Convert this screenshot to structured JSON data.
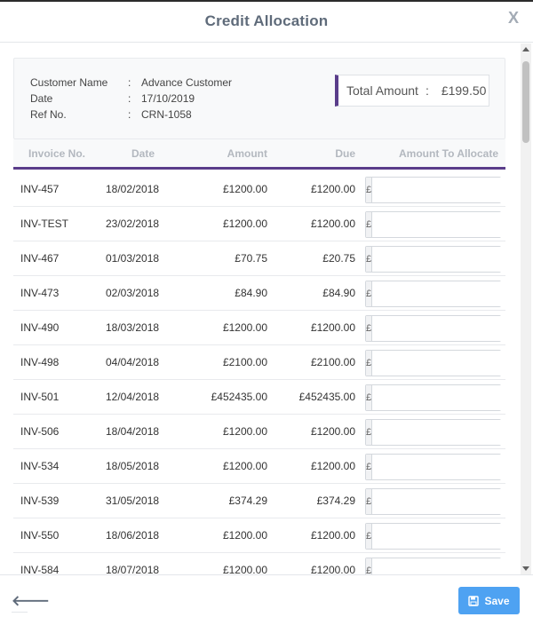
{
  "modal": {
    "title": "Credit Allocation",
    "close_glyph": "X"
  },
  "summary": {
    "customer_name_label": "Customer Name",
    "customer_name_value": "Advance Customer",
    "date_label": "Date",
    "date_value": "17/10/2019",
    "ref_label": "Ref No.",
    "ref_value": "CRN-1058",
    "colon": ":",
    "total_label": "Total Amount",
    "total_value": "£199.50"
  },
  "table": {
    "headers": [
      "Invoice No.",
      "Date",
      "Amount",
      "Due",
      "Amount To Allocate"
    ],
    "currency_prefix": "£",
    "rows": [
      [
        "INV-457",
        "18/02/2018",
        "£1200.00",
        "£1200.00"
      ],
      [
        "INV-TEST",
        "23/02/2018",
        "£1200.00",
        "£1200.00"
      ],
      [
        "INV-467",
        "01/03/2018",
        "£70.75",
        "£20.75"
      ],
      [
        "INV-473",
        "02/03/2018",
        "£84.90",
        "£84.90"
      ],
      [
        "INV-490",
        "18/03/2018",
        "£1200.00",
        "£1200.00"
      ],
      [
        "INV-498",
        "04/04/2018",
        "£2100.00",
        "£2100.00"
      ],
      [
        "INV-501",
        "12/04/2018",
        "£452435.00",
        "£452435.00"
      ],
      [
        "INV-506",
        "18/04/2018",
        "£1200.00",
        "£1200.00"
      ],
      [
        "INV-534",
        "18/05/2018",
        "£1200.00",
        "£1200.00"
      ],
      [
        "INV-539",
        "31/05/2018",
        "£374.29",
        "£374.29"
      ],
      [
        "INV-550",
        "18/06/2018",
        "£1200.00",
        "£1200.00"
      ],
      [
        "INV-584",
        "18/07/2018",
        "£1200.00",
        "£1200.00"
      ]
    ]
  },
  "footer": {
    "back_glyph": "🡐",
    "save_label": "Save"
  },
  "icons": {
    "close": "close-icon",
    "back": "arrow-left-icon",
    "save": "floppy-disk-icon"
  },
  "colors": {
    "accent": "#5a3d8a",
    "save_button": "#4ea2f2"
  }
}
